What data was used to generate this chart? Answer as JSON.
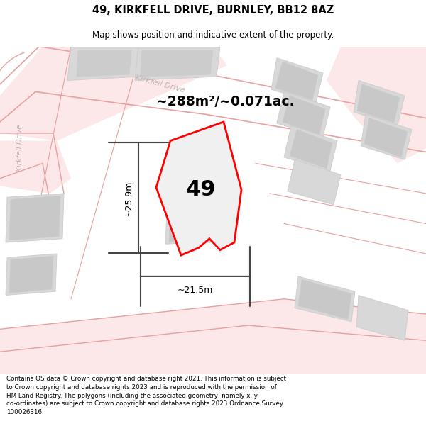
{
  "title": "49, KIRKFELL DRIVE, BURNLEY, BB12 8AZ",
  "subtitle": "Map shows position and indicative extent of the property.",
  "area_text": "~288m²/~0.071ac.",
  "label_49": "49",
  "dim_h": "~25.9m",
  "dim_w": "~21.5m",
  "footer": "Contains OS data © Crown copyright and database right 2021. This information is subject to Crown copyright and database rights 2023 and is reproduced with the permission of HM Land Registry. The polygons (including the associated geometry, namely x, y co-ordinates) are subject to Crown copyright and database rights 2023 Ordnance Survey 100026316.",
  "bg_color": "#ffffff",
  "map_bg": "#ffffff",
  "road_line_color": "#e8a0a0",
  "road_fill_color": "#fce8e8",
  "building_color": "#d8d8d8",
  "building_edge": "#cccccc",
  "plot_fill": "#f0f0f0",
  "plot_edge": "#ff0000",
  "plot_edge_width": 2.0,
  "text_color_road": "#c0a0a0",
  "dim_color": "#444444"
}
